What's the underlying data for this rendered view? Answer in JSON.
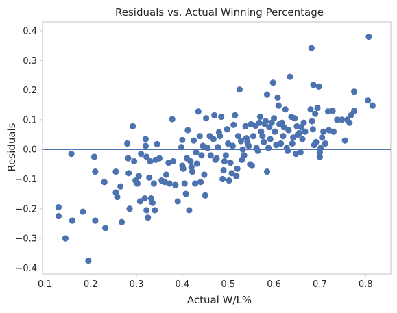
{
  "chart_data": {
    "type": "scatter",
    "title": "Residuals vs. Actual Winning Percentage",
    "xlabel": "Actual W/L%",
    "ylabel": "Residuals",
    "xlim": [
      0.095,
      0.855
    ],
    "ylim": [
      -0.42,
      0.43
    ],
    "xticks": [
      0.1,
      0.2,
      0.3,
      0.4,
      0.5,
      0.6,
      0.7,
      0.8
    ],
    "yticks": [
      -0.4,
      -0.3,
      -0.2,
      -0.1,
      0.0,
      0.1,
      0.2,
      0.3,
      0.4
    ],
    "xtick_labels": [
      "0.1",
      "0.2",
      "0.3",
      "0.4",
      "0.5",
      "0.6",
      "0.7",
      "0.8"
    ],
    "ytick_labels": [
      "−0.4",
      "−0.3",
      "−0.2",
      "−0.1",
      "0.0",
      "0.1",
      "0.2",
      "0.3",
      "0.4"
    ],
    "grid": false,
    "reference_line": {
      "y": 0.0,
      "color": "#4c72b0"
    },
    "marker_color": "#4c72b0",
    "points": [
      [
        0.13,
        -0.195
      ],
      [
        0.13,
        -0.225
      ],
      [
        0.145,
        -0.3
      ],
      [
        0.158,
        -0.015
      ],
      [
        0.16,
        -0.24
      ],
      [
        0.183,
        -0.21
      ],
      [
        0.195,
        -0.375
      ],
      [
        0.208,
        -0.025
      ],
      [
        0.21,
        -0.075
      ],
      [
        0.21,
        -0.24
      ],
      [
        0.23,
        -0.11
      ],
      [
        0.232,
        -0.265
      ],
      [
        0.255,
        -0.075
      ],
      [
        0.255,
        -0.145
      ],
      [
        0.258,
        -0.16
      ],
      [
        0.265,
        -0.125
      ],
      [
        0.268,
        -0.245
      ],
      [
        0.28,
        0.02
      ],
      [
        0.282,
        -0.03
      ],
      [
        0.283,
        -0.08
      ],
      [
        0.285,
        -0.2
      ],
      [
        0.292,
        0.078
      ],
      [
        0.295,
        -0.04
      ],
      [
        0.298,
        -0.105
      ],
      [
        0.302,
        -0.115
      ],
      [
        0.305,
        -0.09
      ],
      [
        0.308,
        -0.175
      ],
      [
        0.31,
        -0.015
      ],
      [
        0.318,
        -0.165
      ],
      [
        0.32,
        0.035
      ],
      [
        0.32,
        0.012
      ],
      [
        0.322,
        -0.025
      ],
      [
        0.322,
        -0.205
      ],
      [
        0.325,
        -0.23
      ],
      [
        0.328,
        -0.095
      ],
      [
        0.33,
        -0.04
      ],
      [
        0.332,
        -0.165
      ],
      [
        0.335,
        -0.18
      ],
      [
        0.338,
        -0.115
      ],
      [
        0.34,
        -0.205
      ],
      [
        0.342,
        -0.035
      ],
      [
        0.345,
        0.018
      ],
      [
        0.35,
        -0.03
      ],
      [
        0.355,
        -0.105
      ],
      [
        0.362,
        -0.11
      ],
      [
        0.365,
        -0.085
      ],
      [
        0.37,
        -0.045
      ],
      [
        0.372,
        -0.115
      ],
      [
        0.378,
        0.102
      ],
      [
        0.38,
        -0.04
      ],
      [
        0.385,
        -0.12
      ],
      [
        0.39,
        -0.175
      ],
      [
        0.398,
        0.008
      ],
      [
        0.4,
        0.032
      ],
      [
        0.4,
        -0.055
      ],
      [
        0.402,
        -0.065
      ],
      [
        0.405,
        -0.115
      ],
      [
        0.408,
        -0.15
      ],
      [
        0.41,
        -0.03
      ],
      [
        0.412,
        0.065
      ],
      [
        0.415,
        -0.205
      ],
      [
        0.418,
        -0.04
      ],
      [
        0.42,
        -0.06
      ],
      [
        0.422,
        -0.075
      ],
      [
        0.425,
        0.03
      ],
      [
        0.428,
        -0.115
      ],
      [
        0.43,
        -0.01
      ],
      [
        0.432,
        -0.048
      ],
      [
        0.435,
        0.128
      ],
      [
        0.438,
        0.045
      ],
      [
        0.44,
        -0.11
      ],
      [
        0.442,
        -0.02
      ],
      [
        0.445,
        0.012
      ],
      [
        0.448,
        -0.085
      ],
      [
        0.45,
        -0.155
      ],
      [
        0.452,
        0.105
      ],
      [
        0.455,
        0.005
      ],
      [
        0.46,
        0.045
      ],
      [
        0.462,
        -0.02
      ],
      [
        0.468,
        0.035
      ],
      [
        0.47,
        0.115
      ],
      [
        0.472,
        -0.035
      ],
      [
        0.475,
        -0.03
      ],
      [
        0.478,
        0.008
      ],
      [
        0.48,
        0.058
      ],
      [
        0.482,
        0.045
      ],
      [
        0.485,
        0.11
      ],
      [
        0.488,
        -0.1
      ],
      [
        0.49,
        -0.07
      ],
      [
        0.492,
        -0.04
      ],
      [
        0.495,
        -0.02
      ],
      [
        0.498,
        0.068
      ],
      [
        0.5,
        0.02
      ],
      [
        0.502,
        -0.105
      ],
      [
        0.505,
        -0.045
      ],
      [
        0.508,
        -0.08
      ],
      [
        0.51,
        0.012
      ],
      [
        0.512,
        0.083
      ],
      [
        0.515,
        0.115
      ],
      [
        0.518,
        -0.09
      ],
      [
        0.52,
        -0.065
      ],
      [
        0.522,
        0.045
      ],
      [
        0.525,
        0.202
      ],
      [
        0.528,
        0.028
      ],
      [
        0.53,
        -0.035
      ],
      [
        0.532,
        0.0
      ],
      [
        0.535,
        -0.02
      ],
      [
        0.538,
        0.078
      ],
      [
        0.54,
        0.038
      ],
      [
        0.542,
        0.025
      ],
      [
        0.545,
        0.012
      ],
      [
        0.548,
        -0.05
      ],
      [
        0.55,
        0.085
      ],
      [
        0.552,
        -0.055
      ],
      [
        0.555,
        0.045
      ],
      [
        0.56,
        0.08
      ],
      [
        0.562,
        0.005
      ],
      [
        0.565,
        -0.005
      ],
      [
        0.568,
        0.09
      ],
      [
        0.57,
        0.11
      ],
      [
        0.572,
        0.06
      ],
      [
        0.575,
        0.045
      ],
      [
        0.578,
        0.025
      ],
      [
        0.58,
        0.085
      ],
      [
        0.582,
        0.095
      ],
      [
        0.585,
        0.185
      ],
      [
        0.585,
        -0.075
      ],
      [
        0.588,
        0.005
      ],
      [
        0.59,
        0.075
      ],
      [
        0.592,
        0.035
      ],
      [
        0.595,
        0.09
      ],
      [
        0.598,
        0.225
      ],
      [
        0.6,
        0.105
      ],
      [
        0.602,
        0.06
      ],
      [
        0.605,
        0.015
      ],
      [
        0.608,
        0.175
      ],
      [
        0.61,
        0.148
      ],
      [
        0.612,
        0.085
      ],
      [
        0.615,
        0.02
      ],
      [
        0.618,
        0.09
      ],
      [
        0.62,
        0.045
      ],
      [
        0.622,
        0.075
      ],
      [
        0.625,
        0.135
      ],
      [
        0.628,
        0.005
      ],
      [
        0.63,
        -0.005
      ],
      [
        0.632,
        0.065
      ],
      [
        0.635,
        0.245
      ],
      [
        0.638,
        0.11
      ],
      [
        0.64,
        0.02
      ],
      [
        0.642,
        0.04
      ],
      [
        0.645,
        0.105
      ],
      [
        0.648,
        -0.015
      ],
      [
        0.65,
        0.078
      ],
      [
        0.652,
        0.05
      ],
      [
        0.655,
        0.055
      ],
      [
        0.658,
        -0.01
      ],
      [
        0.66,
        0.075
      ],
      [
        0.662,
        0.035
      ],
      [
        0.665,
        0.09
      ],
      [
        0.668,
        0.06
      ],
      [
        0.68,
        0.135
      ],
      [
        0.682,
        0.342
      ],
      [
        0.683,
        0.095
      ],
      [
        0.685,
        0.068
      ],
      [
        0.686,
        0.218
      ],
      [
        0.688,
        0.015
      ],
      [
        0.69,
        0.12
      ],
      [
        0.692,
        0.025
      ],
      [
        0.695,
        0.14
      ],
      [
        0.698,
        0.212
      ],
      [
        0.7,
        -0.01
      ],
      [
        0.7,
        -0.025
      ],
      [
        0.702,
        0.005
      ],
      [
        0.705,
        0.04
      ],
      [
        0.708,
        0.06
      ],
      [
        0.712,
        0.02
      ],
      [
        0.718,
        0.128
      ],
      [
        0.72,
        0.065
      ],
      [
        0.728,
        0.13
      ],
      [
        0.73,
        0.06
      ],
      [
        0.738,
        0.1
      ],
      [
        0.748,
        0.1
      ],
      [
        0.755,
        0.03
      ],
      [
        0.76,
        0.1
      ],
      [
        0.765,
        0.09
      ],
      [
        0.768,
        0.115
      ],
      [
        0.775,
        0.195
      ],
      [
        0.775,
        0.13
      ],
      [
        0.805,
        0.165
      ],
      [
        0.807,
        0.38
      ],
      [
        0.815,
        0.148
      ]
    ]
  }
}
